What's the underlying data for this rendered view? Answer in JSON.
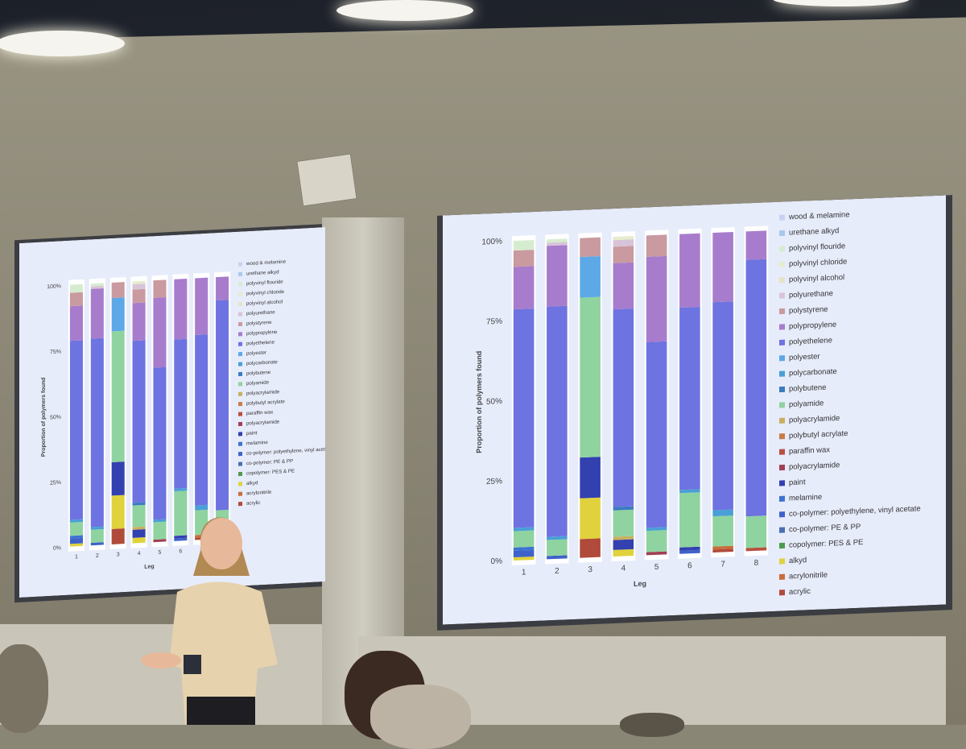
{
  "chart_data": [
    {
      "type": "bar",
      "stacked": true,
      "title": "",
      "xlabel": "Leg",
      "ylabel": "Proportion of polymers found",
      "ylim": [
        0,
        100
      ],
      "yticks": [
        "0%",
        "25%",
        "50%",
        "75%",
        "100%"
      ],
      "categories": [
        "1",
        "2",
        "3",
        "4",
        "5",
        "6",
        "7",
        "8"
      ],
      "legend_position": "right",
      "series": [
        {
          "name": "acrylic",
          "color": "#b04a3a",
          "values": [
            0,
            0,
            6,
            0,
            0,
            0,
            1,
            0
          ]
        },
        {
          "name": "acrylonitrile",
          "color": "#c96d3a",
          "values": [
            0,
            0,
            0,
            0,
            0,
            0,
            1,
            0
          ]
        },
        {
          "name": "alkyd",
          "color": "#e0d23c",
          "values": [
            1,
            0,
            13,
            2,
            0,
            0,
            0,
            0
          ]
        },
        {
          "name": "copolymer: PES & PE",
          "color": "#4e9a4c",
          "values": [
            0,
            0,
            0,
            0,
            0,
            0,
            0,
            0
          ]
        },
        {
          "name": "co-polymer: PE & PP",
          "color": "#4b6fb0",
          "values": [
            0,
            0,
            0,
            0,
            0,
            0,
            0,
            0
          ]
        },
        {
          "name": "co-polymer: polyethylene, vinyl acetate",
          "color": "#3e62c9",
          "values": [
            2,
            1,
            0,
            0,
            0,
            1,
            0,
            0
          ]
        },
        {
          "name": "melamine",
          "color": "#3d73d2",
          "values": [
            1,
            0,
            0,
            0,
            0,
            0,
            0,
            0
          ]
        },
        {
          "name": "paint",
          "color": "#3340b0",
          "values": [
            0,
            0,
            13,
            3,
            0,
            1,
            0,
            0
          ]
        },
        {
          "name": "polyacrylamide",
          "color": "#a03f56",
          "values": [
            0,
            0,
            0,
            0,
            1,
            0,
            0,
            0
          ]
        },
        {
          "name": "paraffin wax",
          "color": "#b85040",
          "values": [
            0,
            0,
            0,
            0,
            0,
            0,
            0,
            1
          ]
        },
        {
          "name": "polybutyl acrylate",
          "color": "#c97b46",
          "values": [
            0,
            0,
            0,
            0,
            0,
            0,
            0,
            0
          ]
        },
        {
          "name": "polyacrylamide",
          "color": "#c9b060",
          "values": [
            0,
            0,
            0,
            1,
            0,
            0,
            0,
            0
          ]
        },
        {
          "name": "polyamide",
          "color": "#8fd3a0",
          "values": [
            5,
            5,
            51,
            8,
            7,
            17,
            10,
            10
          ]
        },
        {
          "name": "polybutene",
          "color": "#3b7bbf",
          "values": [
            0,
            0,
            0,
            1,
            0,
            0,
            0,
            0
          ]
        },
        {
          "name": "polycarbonate",
          "color": "#4a9fd6",
          "values": [
            1,
            1,
            0,
            0,
            1,
            1,
            2,
            0
          ]
        },
        {
          "name": "polyester",
          "color": "#5da8e6",
          "values": [
            0,
            0,
            13,
            0,
            0,
            0,
            0,
            0
          ]
        },
        {
          "name": "polyethelene",
          "color": "#6d73e0",
          "values": [
            67,
            72,
            0,
            60,
            61,
            57,
            69,
            81
          ]
        },
        {
          "name": "polypropylene",
          "color": "#a77ccc",
          "values": [
            13,
            19,
            0,
            14,
            28,
            23,
            23,
            9
          ]
        },
        {
          "name": "polystyrene",
          "color": "#c99aa0",
          "values": [
            5,
            0,
            6,
            5,
            7,
            0,
            0,
            0
          ]
        },
        {
          "name": "polyurethane",
          "color": "#d8c4d8",
          "values": [
            0,
            1,
            0,
            2,
            0,
            0,
            0,
            0
          ]
        },
        {
          "name": "polyvinyl alcohol",
          "color": "#e8e2c8",
          "values": [
            0,
            0,
            0,
            0,
            0,
            0,
            0,
            0
          ]
        },
        {
          "name": "polyvinyl chloride",
          "color": "#e6eccc",
          "values": [
            0,
            0,
            0,
            1,
            0,
            0,
            0,
            0
          ]
        },
        {
          "name": "polyvinyl flouride",
          "color": "#d6ecd0",
          "values": [
            3,
            1,
            0,
            0,
            0,
            0,
            0,
            0
          ]
        },
        {
          "name": "urethane alkyd",
          "color": "#a8c8ee",
          "values": [
            0,
            0,
            0,
            0,
            0,
            0,
            0,
            0
          ]
        },
        {
          "name": "wood & melamine",
          "color": "#c8d2f0",
          "values": [
            0,
            0,
            0,
            0,
            0,
            0,
            0,
            0
          ]
        }
      ]
    }
  ]
}
